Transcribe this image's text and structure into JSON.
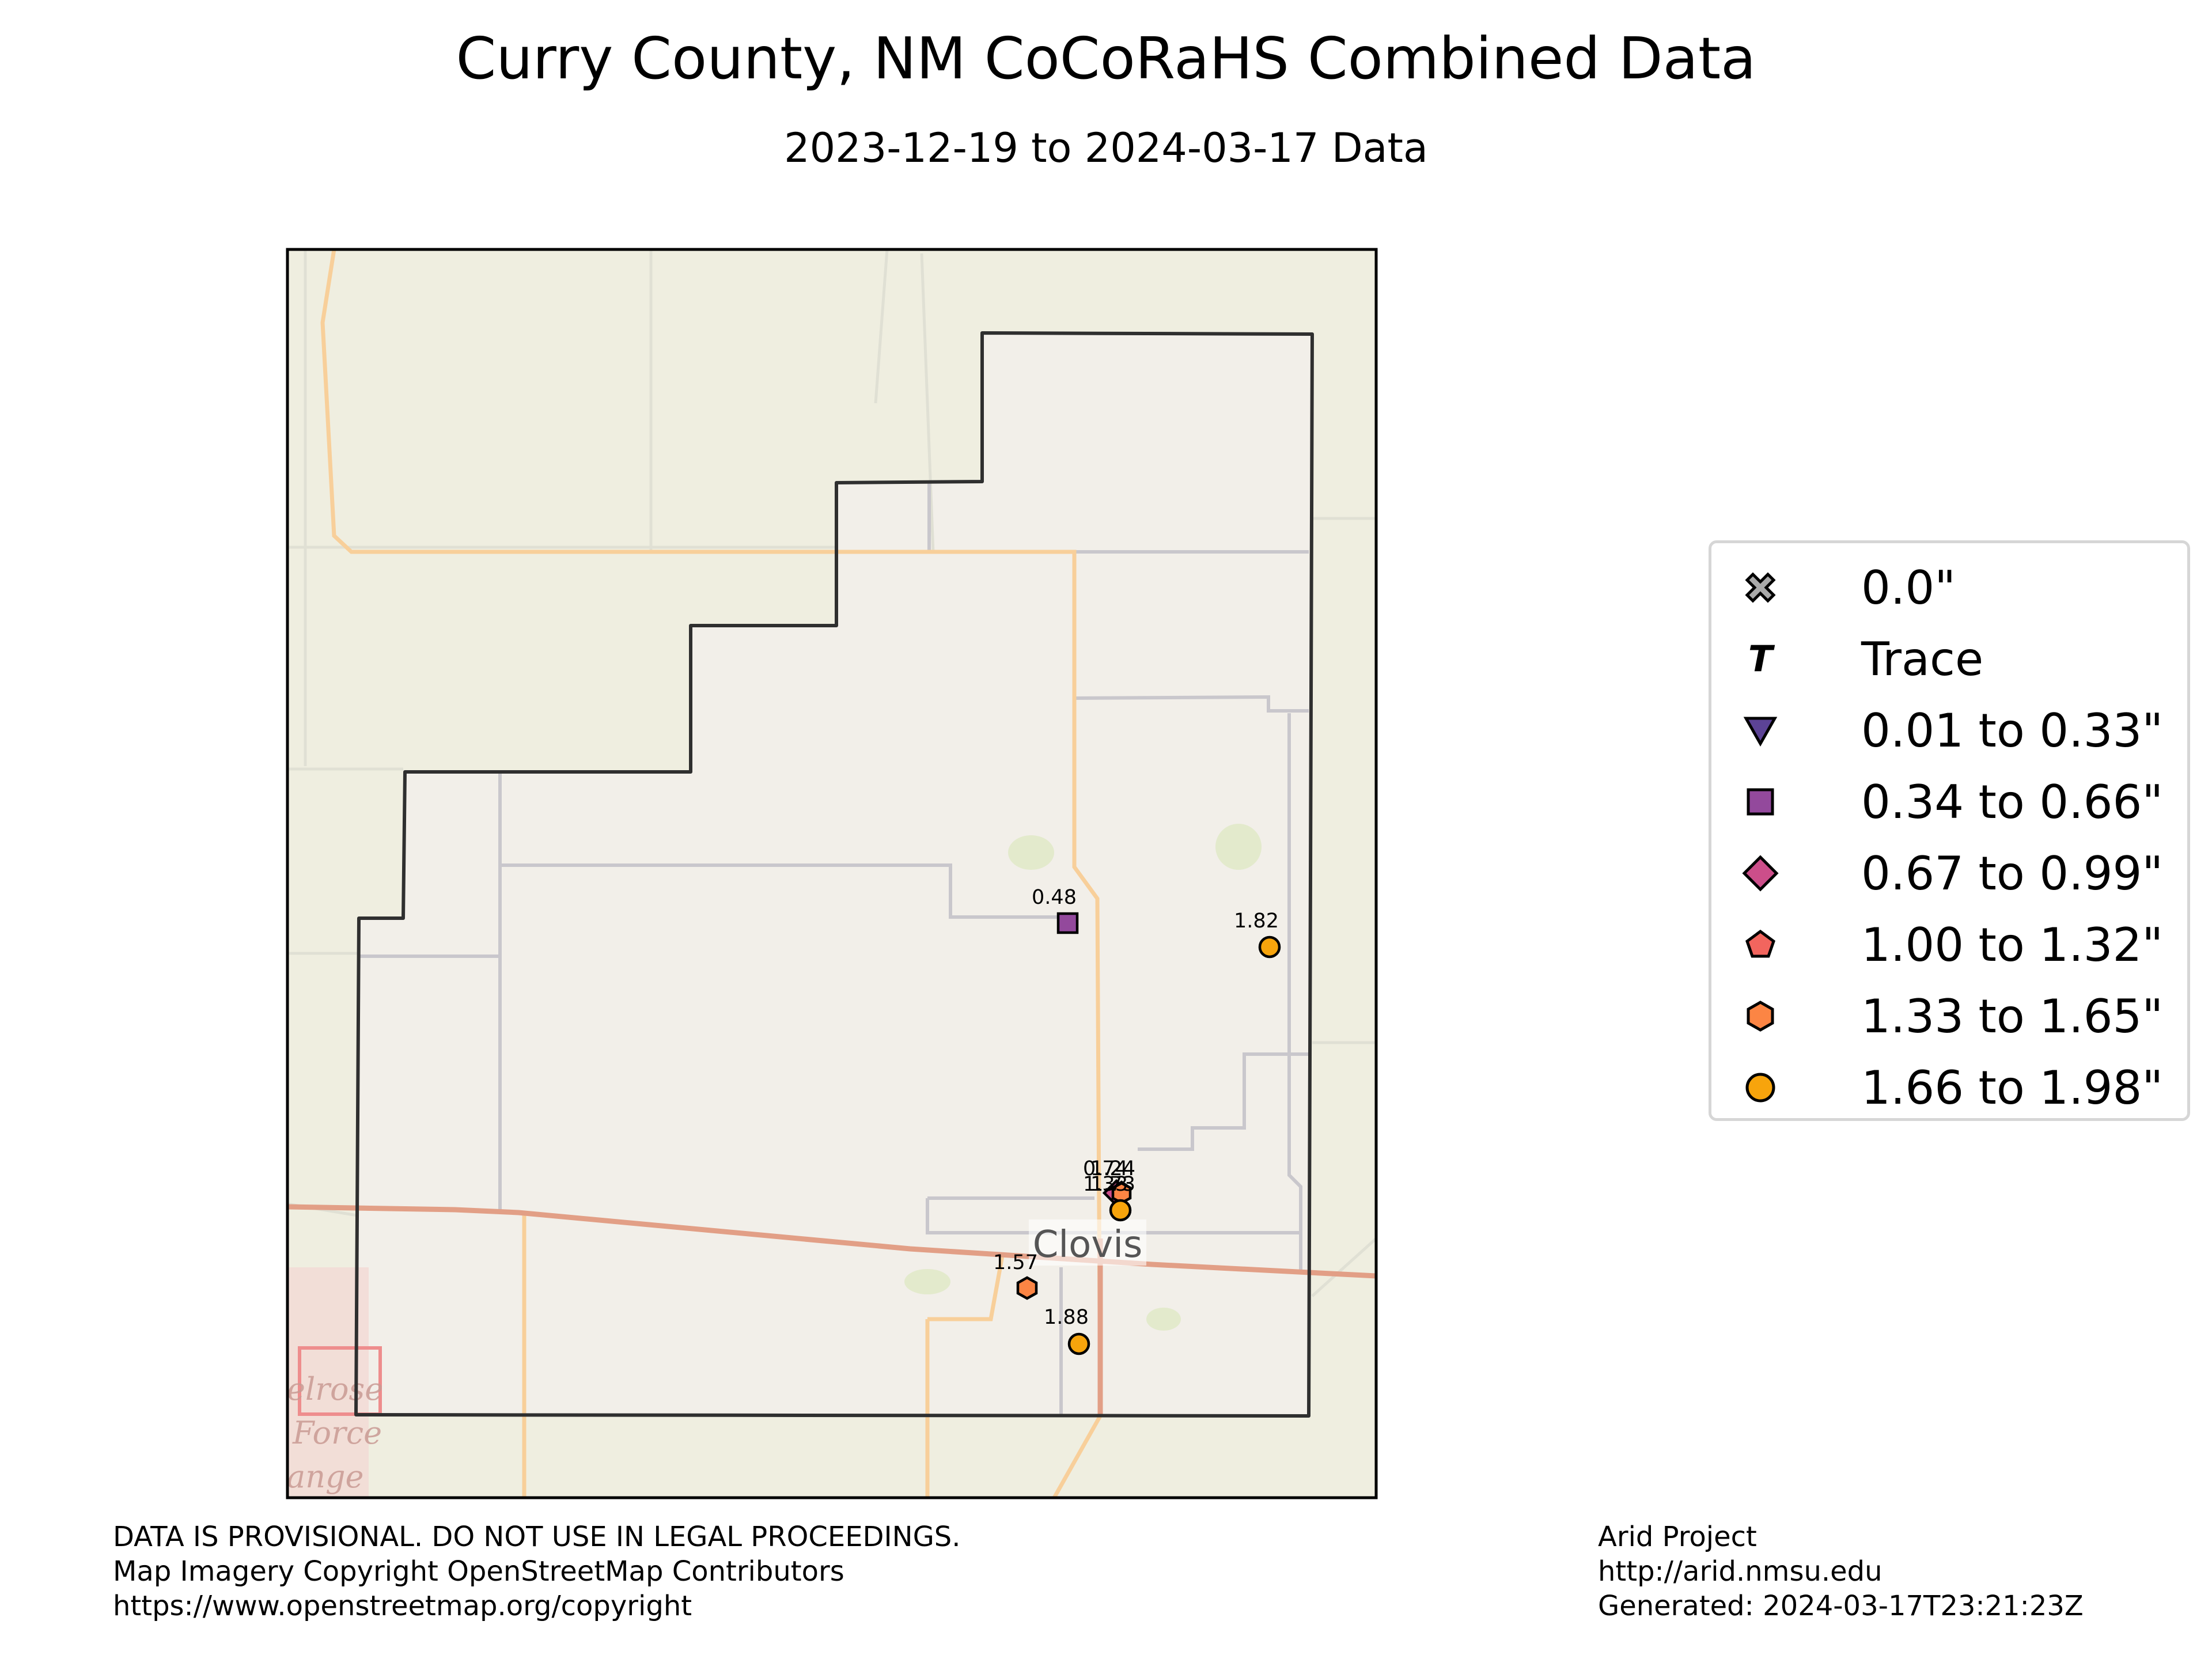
{
  "title": "Curry County, NM CoCoRaHS Combined Data",
  "subtitle": "2023-12-19 to 2024-03-17 Data",
  "map": {
    "place_label": "Clovis",
    "basemap_fragments": [
      "elrose",
      "Force",
      "ange"
    ]
  },
  "legend": {
    "items": [
      {
        "label": "0.0\"",
        "symbol": "x-icon",
        "color": "#aaaaaa"
      },
      {
        "label": "Trace",
        "symbol": "t-icon",
        "color": "#000000"
      },
      {
        "label": "0.01 to 0.33\"",
        "symbol": "triangle-icon",
        "color": "#5c4396"
      },
      {
        "label": "0.34 to 0.66\"",
        "symbol": "square-icon",
        "color": "#93499c"
      },
      {
        "label": "0.67 to 0.99\"",
        "symbol": "diamond-icon",
        "color": "#cc4e8a"
      },
      {
        "label": "1.00 to 1.32\"",
        "symbol": "pentagon-icon",
        "color": "#f2655e"
      },
      {
        "label": "1.33 to 1.65\"",
        "symbol": "hexagon-icon",
        "color": "#fc8544"
      },
      {
        "label": "1.66 to 1.98\"",
        "symbol": "circle-icon",
        "color": "#f7a40c"
      }
    ]
  },
  "stations": [
    {
      "value": "0.48",
      "symbol": "square-icon",
      "color": "#93499c"
    },
    {
      "value": "1.82",
      "symbol": "circle-icon",
      "color": "#f7a40c"
    },
    {
      "value": "0.74",
      "symbol": "diamond-icon",
      "color": "#cc4e8a"
    },
    {
      "value": "1.24",
      "symbol": "pentagon-icon",
      "color": "#f2655e"
    },
    {
      "value": "1.33",
      "symbol": "hexagon-icon",
      "color": "#fc8544"
    },
    {
      "value": "1.73",
      "symbol": "circle-icon",
      "color": "#f7a40c"
    },
    {
      "value": "1.57",
      "symbol": "hexagon-icon",
      "color": "#fc8544"
    },
    {
      "value": "1.88",
      "symbol": "circle-icon",
      "color": "#f7a40c"
    }
  ],
  "footer_left": [
    "DATA IS PROVISIONAL. DO NOT USE IN LEGAL PROCEEDINGS.",
    "Map Imagery Copyright OpenStreetMap Contributors",
    "https://www.openstreetmap.org/copyright"
  ],
  "footer_right": [
    "Arid Project",
    "http://arid.nmsu.edu",
    "Generated: 2024-03-17T23:21:23Z"
  ]
}
